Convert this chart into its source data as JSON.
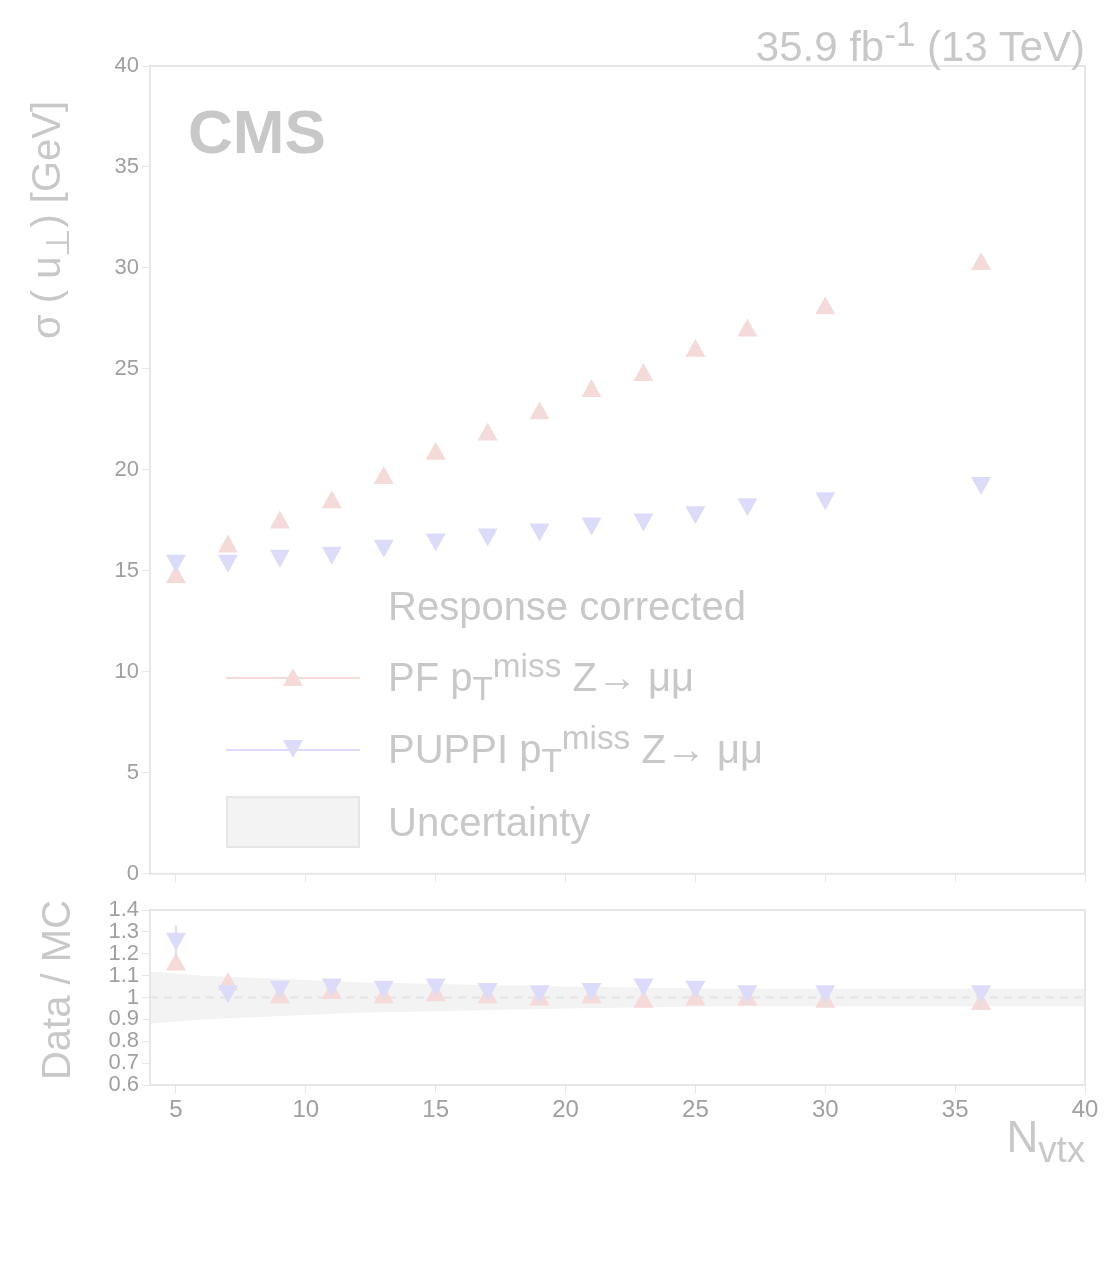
{
  "chart_data": [
    {
      "type": "scatter",
      "title": "35.9 fb$^{-1}$ (13 TeV)",
      "ylabel": "σ ( u$_{⊥}$) [GeV]",
      "annotations": [
        "CMS"
      ],
      "legend_title": "Response corrected",
      "legend": "bottom left",
      "tick_labels": "y",
      "xlim": [
        4,
        40
      ],
      "xticks": [
        5,
        10,
        15,
        20,
        25,
        30,
        35,
        40
      ],
      "ylim": [
        0,
        40
      ],
      "yticks": [
        0,
        5,
        10,
        15,
        20,
        25,
        30,
        35,
        40
      ],
      "x": [
        5,
        7,
        9,
        11,
        13,
        15,
        17,
        19,
        21,
        23,
        25,
        27,
        30,
        36
      ],
      "series": [
        {
          "name": "PF p$_{T}$$^{miss}$ Z→ μμ",
          "color": "#f5dada",
          "marker": "triangle",
          "values": [
            14.8,
            16.3,
            17.5,
            18.5,
            19.7,
            20.9,
            21.85,
            22.9,
            24.0,
            24.8,
            26.0,
            27.0,
            28.1,
            30.3
          ]
        },
        {
          "name": "PUPPI p$_{T}$$^{miss}$ Z→ μμ",
          "color": "#dcdcfa",
          "marker": "triangle-down",
          "values": [
            15.4,
            15.4,
            15.65,
            15.8,
            16.15,
            16.45,
            16.7,
            16.95,
            17.25,
            17.45,
            17.8,
            18.2,
            18.5,
            19.25
          ]
        }
      ]
    },
    {
      "type": "scatter",
      "xlabel": "N$_{vtx}$",
      "ylabel": "Data / MC",
      "xlim": [
        4,
        40
      ],
      "xticks": [
        5,
        10,
        15,
        20,
        25,
        30,
        35,
        40
      ],
      "ylim": [
        0.6,
        1.4
      ],
      "yticks": [
        0.6,
        0.7,
        0.8,
        0.9,
        1,
        1.1,
        1.2,
        1.3,
        1.4
      ],
      "x": [
        5,
        7,
        9,
        11,
        13,
        15,
        17,
        19,
        21,
        23,
        25,
        27,
        30,
        36
      ],
      "series": [
        {
          "name": "Uncertainty",
          "type": "line",
          "color": "#e4e4e4",
          "line_style": "dashed",
          "x": [
            4,
            6,
            8,
            10,
            12,
            16,
            20,
            26,
            30,
            40
          ],
          "values": [
            1,
            1,
            1,
            1,
            1,
            1,
            1,
            1,
            1,
            1
          ],
          "lower": [
            0.88,
            0.9,
            0.91,
            0.92,
            0.93,
            0.94,
            0.95,
            0.96,
            0.96,
            0.96
          ],
          "upper": [
            1.12,
            1.1,
            1.09,
            1.08,
            1.07,
            1.06,
            1.05,
            1.04,
            1.04,
            1.04
          ]
        },
        {
          "color": "#f5dada",
          "marker": "triangle",
          "values": [
            1.16,
            1.07,
            1.01,
            1.03,
            1.01,
            1.02,
            1.01,
            1.0,
            1.01,
            0.99,
            1.0,
            1.0,
            0.99,
            0.98
          ]
        },
        {
          "color": "#dcdcfa",
          "marker": "triangle-down",
          "values": [
            1.26,
            1.02,
            1.04,
            1.05,
            1.04,
            1.05,
            1.03,
            1.02,
            1.03,
            1.05,
            1.04,
            1.02,
            1.02,
            1.02
          ],
          "errors": [
            [
              1.18,
              1.33
            ],
            null,
            null,
            null,
            null,
            null,
            null,
            null,
            null,
            null,
            null,
            null,
            null,
            null
          ]
        }
      ]
    }
  ]
}
